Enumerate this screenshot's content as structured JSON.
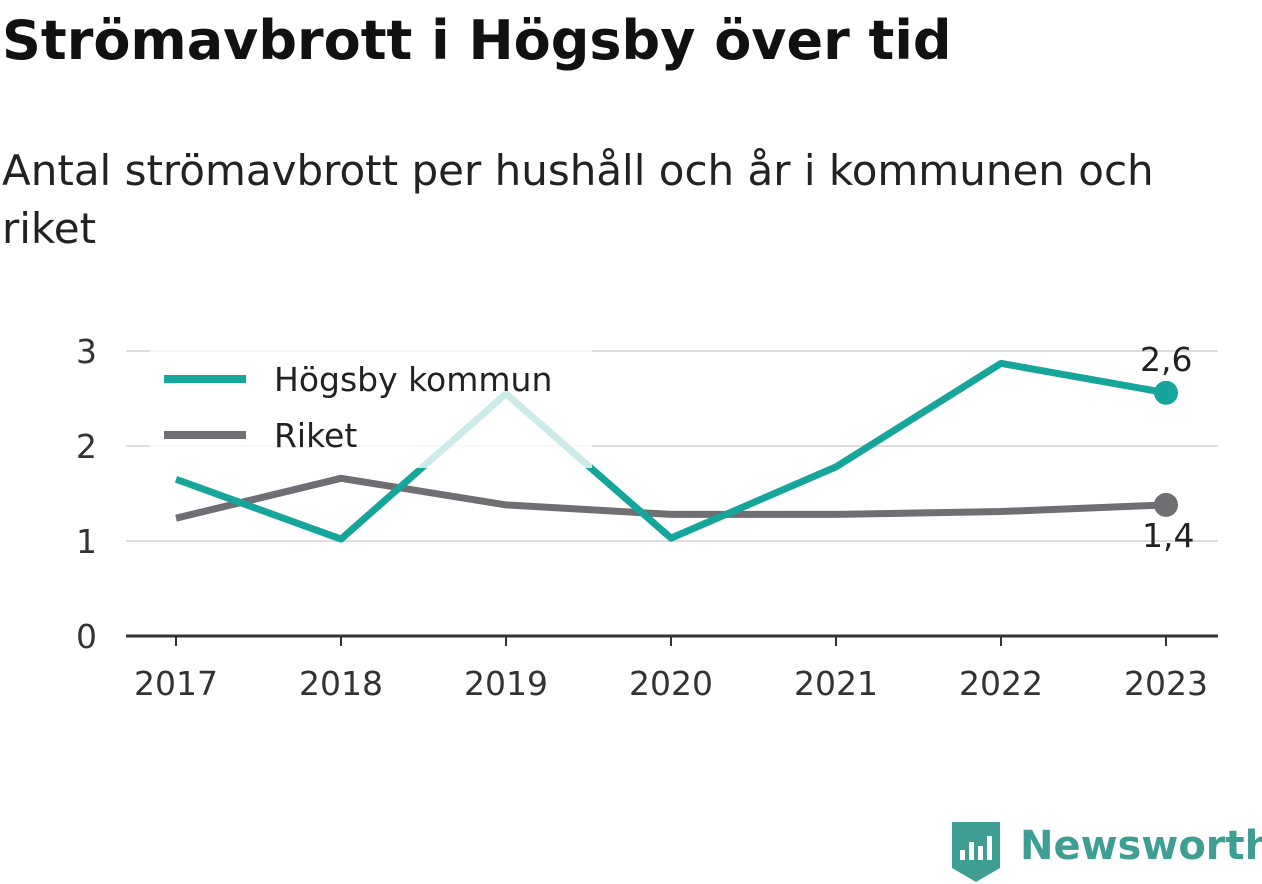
{
  "chart_data": {
    "type": "line",
    "title": "Strömavbrott i Högsby över tid",
    "subtitle": "Antal strömavbrott per hushåll och år i kommunen och riket",
    "xlabel": "",
    "ylabel": "",
    "categories": [
      "2017",
      "2018",
      "2019",
      "2020",
      "2021",
      "2022",
      "2023"
    ],
    "y_ticks": [
      "0",
      "1",
      "2",
      "3"
    ],
    "ylim": [
      0,
      3.1
    ],
    "grid": true,
    "legend_position": "top-left",
    "series": [
      {
        "name": "Högsby kommun",
        "values": [
          1.65,
          1.02,
          2.55,
          1.03,
          1.78,
          2.87,
          2.56
        ],
        "color": "#16a59a",
        "end_label": "2,6"
      },
      {
        "name": "Riket",
        "values": [
          1.24,
          1.66,
          1.38,
          1.28,
          1.28,
          1.31,
          1.38
        ],
        "color": "#6e6e73",
        "end_label": "1,4"
      }
    ]
  },
  "brand": {
    "name": "Newsworthy",
    "icon": "newsworthy-logo-icon",
    "color": "#3f9e94"
  }
}
